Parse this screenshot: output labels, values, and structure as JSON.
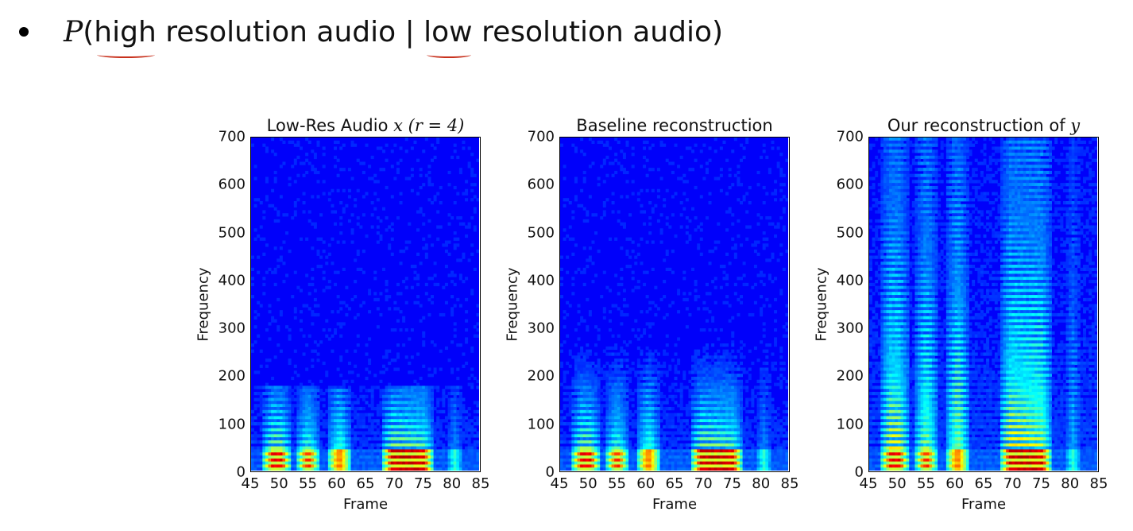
{
  "header": {
    "formula_p": "P",
    "formula_open": "(",
    "formula_high": "high",
    "formula_mid": " resolution audio | ",
    "formula_low": "low",
    "formula_end": " resolution audio)"
  },
  "chart_data": [
    {
      "type": "heatmap",
      "title_text": "Low-Res Audio ",
      "title_math": "x (r = 4)",
      "xlabel": "Frame",
      "ylabel": "Frequency",
      "xlim": [
        45,
        85
      ],
      "ylim": [
        0,
        700
      ],
      "xticks": [
        "45",
        "50",
        "55",
        "60",
        "65",
        "70",
        "75",
        "80",
        "85"
      ],
      "yticks": [
        "0",
        "100",
        "200",
        "300",
        "400",
        "500",
        "600",
        "700"
      ],
      "colormap": "jet",
      "frequency_cutoff": 175,
      "energy_profile": "low-frequency harmonics only; all energy above 175 removed"
    },
    {
      "type": "heatmap",
      "title_text": "Baseline reconstruction",
      "title_math": "",
      "xlabel": "Frame",
      "ylabel": "Frequency",
      "xlim": [
        45,
        85
      ],
      "ylim": [
        0,
        700
      ],
      "xticks": [
        "45",
        "50",
        "55",
        "60",
        "65",
        "70",
        "75",
        "80",
        "85"
      ],
      "yticks": [
        "0",
        "100",
        "200",
        "300",
        "400",
        "500",
        "600",
        "700"
      ],
      "colormap": "jet",
      "frequency_cutoff": 270,
      "energy_profile": "low-frequency harmonics with faint energy up to ~270"
    },
    {
      "type": "heatmap",
      "title_text": "Our reconstruction of ",
      "title_math": "y",
      "xlabel": "Frame",
      "ylabel": "Frequency",
      "xlim": [
        45,
        85
      ],
      "ylim": [
        0,
        700
      ],
      "xticks": [
        "45",
        "50",
        "55",
        "60",
        "65",
        "70",
        "75",
        "80",
        "85"
      ],
      "yticks": [
        "0",
        "100",
        "200",
        "300",
        "400",
        "500",
        "600",
        "700"
      ],
      "colormap": "jet",
      "frequency_cutoff": 700,
      "energy_profile": "harmonics across full band up to 700"
    }
  ]
}
